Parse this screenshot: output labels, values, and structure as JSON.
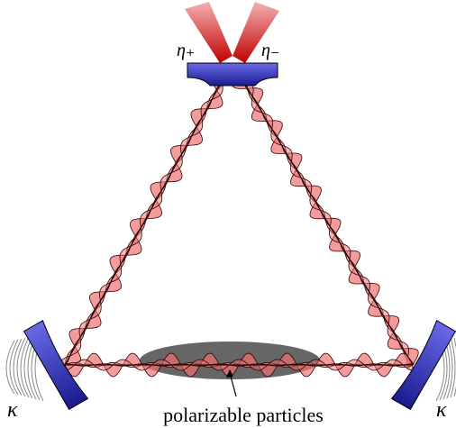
{
  "pump_labels": [
    "η₊",
    "η₋"
  ],
  "loss_labels": [
    "κ",
    "κ"
  ],
  "particles_label": "polarizable particles"
}
